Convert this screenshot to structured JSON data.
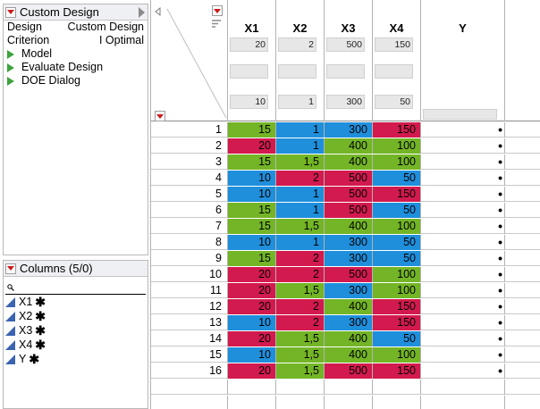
{
  "design_panel": {
    "title": "Custom Design",
    "props": [
      {
        "label": "Design",
        "value": "Custom Design"
      },
      {
        "label": "Criterion",
        "value": "I Optimal"
      }
    ],
    "actions": [
      "Model",
      "Evaluate Design",
      "DOE Dialog"
    ]
  },
  "columns_panel": {
    "title": "Columns (5/0)",
    "search_value": "",
    "items": [
      {
        "name": "X1",
        "star": "✱"
      },
      {
        "name": "X2",
        "star": "✱"
      },
      {
        "name": "X3",
        "star": "✱"
      },
      {
        "name": "X4",
        "star": "✱"
      },
      {
        "name": "Y",
        "star": "✱"
      }
    ]
  },
  "table": {
    "columns": [
      {
        "name": "X1",
        "top": "20",
        "bottom": "10"
      },
      {
        "name": "X2",
        "top": "2",
        "bottom": "1"
      },
      {
        "name": "X3",
        "top": "500",
        "bottom": "300"
      },
      {
        "name": "X4",
        "top": "150",
        "bottom": "50"
      },
      {
        "name": "Y",
        "top": "",
        "bottom": ""
      }
    ],
    "rows": [
      {
        "n": "1",
        "x1": "15",
        "x2": "1",
        "x3": "300",
        "x4": "150",
        "y": "•"
      },
      {
        "n": "2",
        "x1": "20",
        "x2": "1",
        "x3": "400",
        "x4": "100",
        "y": "•"
      },
      {
        "n": "3",
        "x1": "15",
        "x2": "1,5",
        "x3": "400",
        "x4": "100",
        "y": "•"
      },
      {
        "n": "4",
        "x1": "10",
        "x2": "2",
        "x3": "500",
        "x4": "50",
        "y": "•"
      },
      {
        "n": "5",
        "x1": "10",
        "x2": "1",
        "x3": "500",
        "x4": "150",
        "y": "•"
      },
      {
        "n": "6",
        "x1": "15",
        "x2": "1",
        "x3": "500",
        "x4": "50",
        "y": "•"
      },
      {
        "n": "7",
        "x1": "15",
        "x2": "1,5",
        "x3": "400",
        "x4": "100",
        "y": "•"
      },
      {
        "n": "8",
        "x1": "10",
        "x2": "1",
        "x3": "300",
        "x4": "50",
        "y": "•"
      },
      {
        "n": "9",
        "x1": "15",
        "x2": "2",
        "x3": "300",
        "x4": "50",
        "y": "•"
      },
      {
        "n": "10",
        "x1": "20",
        "x2": "2",
        "x3": "500",
        "x4": "100",
        "y": "•"
      },
      {
        "n": "11",
        "x1": "20",
        "x2": "1,5",
        "x3": "300",
        "x4": "100",
        "y": "•"
      },
      {
        "n": "12",
        "x1": "20",
        "x2": "2",
        "x3": "400",
        "x4": "150",
        "y": "•"
      },
      {
        "n": "13",
        "x1": "10",
        "x2": "2",
        "x3": "300",
        "x4": "150",
        "y": "•"
      },
      {
        "n": "14",
        "x1": "20",
        "x2": "1,5",
        "x3": "400",
        "x4": "50",
        "y": "•"
      },
      {
        "n": "15",
        "x1": "10",
        "x2": "1,5",
        "x3": "400",
        "x4": "100",
        "y": "•"
      },
      {
        "n": "16",
        "x1": "20",
        "x2": "1,5",
        "x3": "500",
        "x4": "150",
        "y": "•"
      }
    ]
  },
  "colors": {
    "low": "#1f8fdc",
    "mid": "#73b526",
    "high": "#d21a4e",
    "status_red": "#cc1a1a",
    "action_green": "#3ea33e",
    "continuous_blue": "#3a63b0"
  },
  "icons": {
    "panel_menu": "red-triangle-menu-icon",
    "action": "green-triangle-icon",
    "column": "continuous-column-icon",
    "search": "magnifier-icon",
    "collapse": "collapse-arrow-icon"
  }
}
